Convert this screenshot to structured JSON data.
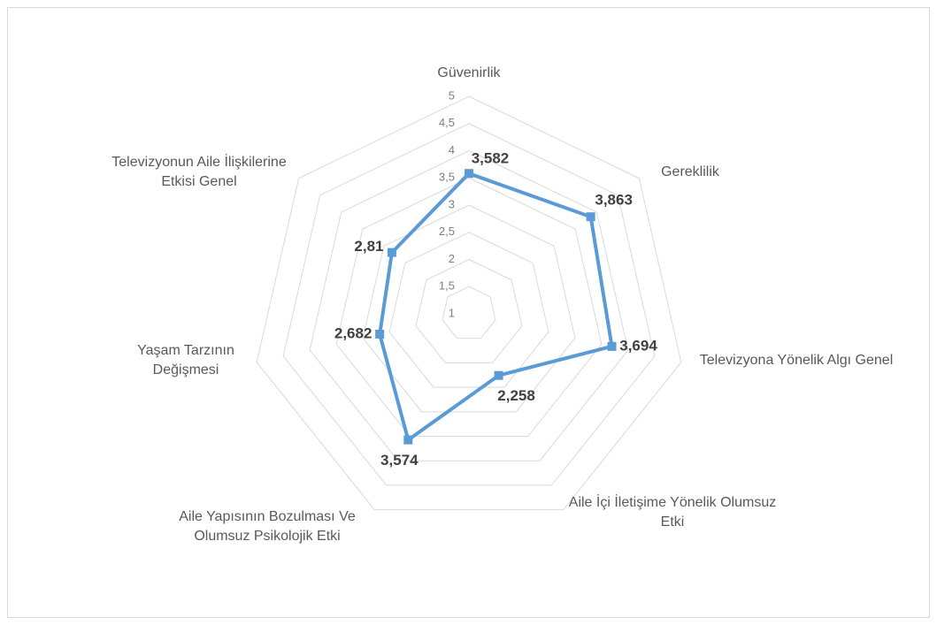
{
  "chart_data": {
    "type": "radar",
    "categories": [
      "Güvenirlik",
      "Gereklilik",
      "Televizyona Yönelik Algı Genel",
      "Aile İçi İletişime Yönelik Olumsuz Etki",
      "Aile Yapısının Bozulması Ve Olumsuz Psikolojik Etki",
      "Yaşam Tarzının Değişmesi",
      "Televizyonun Aile İlişkilerine Etkisi Genel"
    ],
    "values": [
      3.582,
      3.863,
      3.694,
      2.258,
      3.574,
      2.682,
      2.81
    ],
    "value_labels": [
      "3,582",
      "3,863",
      "3,694",
      "2,258",
      "3,574",
      "2,682",
      "2,81"
    ],
    "color": "#5b9bd5",
    "ylim": [
      1,
      5
    ],
    "yticks": [
      1,
      {
        "value": 1.5,
        "label": "1,5"
      },
      2,
      {
        "value": 2.5,
        "label": "2,5"
      },
      3,
      {
        "value": 3.5,
        "label": "3,5"
      },
      4,
      {
        "value": 4.5,
        "label": "4,5"
      },
      5
    ],
    "grid": true
  }
}
